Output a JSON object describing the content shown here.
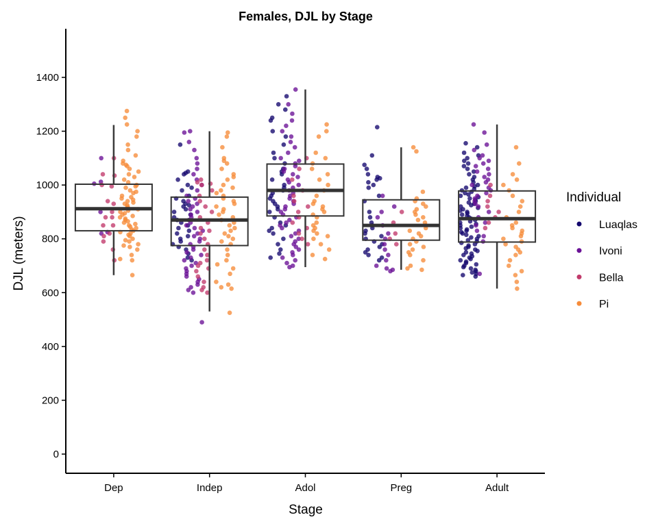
{
  "chart_data": {
    "type": "box",
    "title": "Females, DJL by Stage",
    "xlabel": "Stage",
    "ylabel": "DJL (meters)",
    "categories": [
      "Dep",
      "Indep",
      "Adol",
      "Preg",
      "Adult"
    ],
    "yticks": [
      0,
      200,
      400,
      600,
      800,
      1000,
      1200,
      1400
    ],
    "ylim": [
      -70,
      1580
    ],
    "grid": false,
    "legend": {
      "title": "Individual",
      "placement": "right",
      "entries": [
        {
          "name": "Luaqlas",
          "color": "#14086e"
        },
        {
          "name": "Ivoni",
          "color": "#6a1196"
        },
        {
          "name": "Bella",
          "color": "#c13a6b"
        },
        {
          "name": "Pi",
          "color": "#f68c3a"
        }
      ]
    },
    "boxes": [
      {
        "category": "Dep",
        "whisker_low": 665,
        "q1": 830,
        "median": 912,
        "q3": 1003,
        "whisker_high": 1223
      },
      {
        "category": "Indep",
        "whisker_low": 530,
        "q1": 775,
        "median": 870,
        "q3": 955,
        "whisker_high": 1200
      },
      {
        "category": "Adol",
        "whisker_low": 695,
        "q1": 885,
        "median": 980,
        "q3": 1078,
        "whisker_high": 1355
      },
      {
        "category": "Preg",
        "whisker_low": 685,
        "q1": 795,
        "median": 850,
        "q3": 945,
        "whisker_high": 1140
      },
      {
        "category": "Adult",
        "whisker_low": 615,
        "q1": 788,
        "median": 875,
        "q3": 978,
        "whisker_high": 1225
      }
    ],
    "points": {
      "Dep": {
        "Luaqlas": [],
        "Ivoni": [
          1012,
          1005,
          900,
          825,
          820,
          1100
        ],
        "Bella": [
          1040,
          1035,
          995,
          930,
          880,
          880,
          850,
          850,
          820,
          810,
          790,
          760,
          720,
          1100,
          1000,
          940,
          900
        ],
        "Pi": [
          1275,
          1250,
          1225,
          1200,
          1180,
          1150,
          1130,
          1110,
          1090,
          1080,
          1075,
          1070,
          1060,
          1050,
          1040,
          1030,
          1020,
          1010,
          1000,
          995,
          990,
          980,
          975,
          970,
          960,
          955,
          950,
          945,
          940,
          935,
          930,
          925,
          920,
          915,
          910,
          905,
          900,
          895,
          890,
          885,
          880,
          875,
          870,
          865,
          860,
          855,
          850,
          845,
          840,
          835,
          830,
          825,
          820,
          815,
          810,
          800,
          795,
          790,
          780,
          775,
          770,
          760,
          740,
          725,
          720,
          665
        ]
      },
      "Indep": {
        "Luaqlas": [
          1150,
          1050,
          1045,
          1020,
          1000,
          990,
          980,
          950,
          940,
          930,
          925,
          920,
          910,
          900,
          890,
          880,
          870,
          860,
          850,
          840,
          830,
          820,
          810,
          800,
          790,
          780,
          770,
          760,
          745,
          730,
          720,
          1040,
          960
        ],
        "Ivoni": [
          1200,
          1195,
          1160,
          1130,
          1100,
          1080,
          1060,
          1040,
          1020,
          1000,
          980,
          960,
          950,
          940,
          930,
          920,
          910,
          900,
          890,
          880,
          870,
          860,
          850,
          840,
          830,
          820,
          810,
          800,
          790,
          780,
          770,
          760,
          750,
          740,
          730,
          720,
          710,
          700,
          690,
          680,
          670,
          660,
          650,
          640,
          630,
          620,
          610,
          600,
          490
        ],
        "Bella": [
          1020,
          1010,
          1005,
          1000,
          980,
          960,
          940,
          920,
          900,
          880,
          860,
          840,
          830,
          820,
          800,
          780,
          760,
          740,
          720,
          710,
          700,
          690,
          680,
          660,
          640,
          620,
          610,
          600
        ],
        "Pi": [
          1195,
          1180,
          1140,
          1100,
          1090,
          1080,
          1060,
          1040,
          1030,
          1020,
          1000,
          990,
          980,
          970,
          960,
          950,
          940,
          930,
          920,
          910,
          900,
          890,
          880,
          870,
          860,
          850,
          840,
          830,
          820,
          810,
          800,
          790,
          780,
          760,
          740,
          720,
          705,
          690,
          670,
          640,
          630,
          620,
          615,
          525
        ]
      },
      "Adol": {
        "Luaqlas": [
          1330,
          1300,
          1280,
          1250,
          1240,
          1200,
          1180,
          1150,
          1120,
          1100,
          1080,
          1060,
          1050,
          1040,
          1020,
          1000,
          990,
          980,
          970,
          960,
          950,
          940,
          930,
          920,
          910,
          900,
          880,
          860,
          850,
          840,
          830,
          820,
          800,
          780,
          760,
          745,
          730
        ],
        "Ivoni": [
          1355,
          1300,
          1265,
          1240,
          1220,
          1200,
          1180,
          1160,
          1140,
          1120,
          1100,
          1090,
          1080,
          1070,
          1060,
          1050,
          1040,
          1030,
          1020,
          1010,
          1000,
          990,
          980,
          970,
          960,
          950,
          940,
          930,
          920,
          910,
          900,
          890,
          880,
          870,
          860,
          850,
          840,
          830,
          820,
          810,
          800,
          790,
          780,
          770,
          760,
          750,
          740,
          730,
          720,
          710,
          700,
          695
        ],
        "Bella": [
          1100,
          1060,
          1020,
          980,
          960,
          940,
          920,
          900,
          880,
          860,
          840,
          820,
          800,
          780
        ],
        "Pi": [
          1225,
          1200,
          1180,
          1120,
          1100,
          1080,
          1060,
          1040,
          1020,
          1000,
          980,
          960,
          940,
          930,
          920,
          910,
          900,
          890,
          880,
          860,
          850,
          840,
          830,
          820,
          810,
          800,
          780,
          760,
          740,
          725
        ]
      },
      "Preg": {
        "Luaqlas": [
          1215,
          1110,
          1075,
          1060,
          1040,
          1030,
          1025,
          1020,
          1010,
          1000,
          990,
          960,
          940,
          900,
          880,
          860,
          850,
          840,
          830,
          820,
          810,
          800,
          790,
          780,
          770,
          760,
          750,
          740,
          730,
          720
        ],
        "Ivoni": [
          960,
          920,
          900,
          880,
          850,
          820,
          800,
          780,
          760,
          740,
          720,
          700,
          690,
          685,
          680
        ],
        "Bella": [
          900,
          860,
          820,
          800,
          780
        ],
        "Pi": [
          1140,
          1125,
          975,
          950,
          940,
          930,
          920,
          910,
          900,
          890,
          880,
          870,
          860,
          850,
          840,
          830,
          820,
          810,
          800,
          790,
          780,
          770,
          760,
          750,
          740,
          720,
          700,
          690,
          685
        ]
      },
      "Adult": {
        "Luaqlas": [
          1155,
          1140,
          1120,
          1110,
          1100,
          1090,
          1080,
          1070,
          1060,
          1050,
          1040,
          1030,
          1020,
          1010,
          1000,
          995,
          990,
          985,
          980,
          975,
          970,
          965,
          960,
          955,
          950,
          945,
          940,
          935,
          930,
          925,
          920,
          915,
          910,
          905,
          900,
          895,
          890,
          885,
          880,
          875,
          870,
          865,
          860,
          855,
          850,
          845,
          840,
          835,
          830,
          825,
          820,
          815,
          810,
          805,
          800,
          795,
          790,
          785,
          780,
          775,
          770,
          765,
          760,
          755,
          750,
          745,
          740,
          735,
          730,
          725,
          720,
          715,
          710,
          705,
          700,
          695,
          690,
          685,
          680,
          675,
          670,
          665,
          660
        ],
        "Ivoni": [
          1225,
          1195,
          1150,
          1130,
          1110,
          1100,
          1090,
          1080,
          1070,
          1060,
          1050,
          1040,
          1030,
          1020,
          1010,
          1000,
          990,
          980,
          970,
          960,
          950,
          940,
          930,
          920,
          900,
          880,
          860,
          850,
          830,
          810,
          790,
          670
        ],
        "Bella": [
          1000,
          960,
          940,
          920,
          900,
          880,
          860,
          840
        ],
        "Pi": [
          1140,
          1080,
          1040,
          1020,
          1000,
          980,
          960,
          940,
          920,
          900,
          880,
          860,
          850,
          840,
          830,
          820,
          810,
          800,
          790,
          780,
          770,
          760,
          750,
          740,
          720,
          700,
          680,
          665,
          640,
          615
        ]
      }
    }
  }
}
